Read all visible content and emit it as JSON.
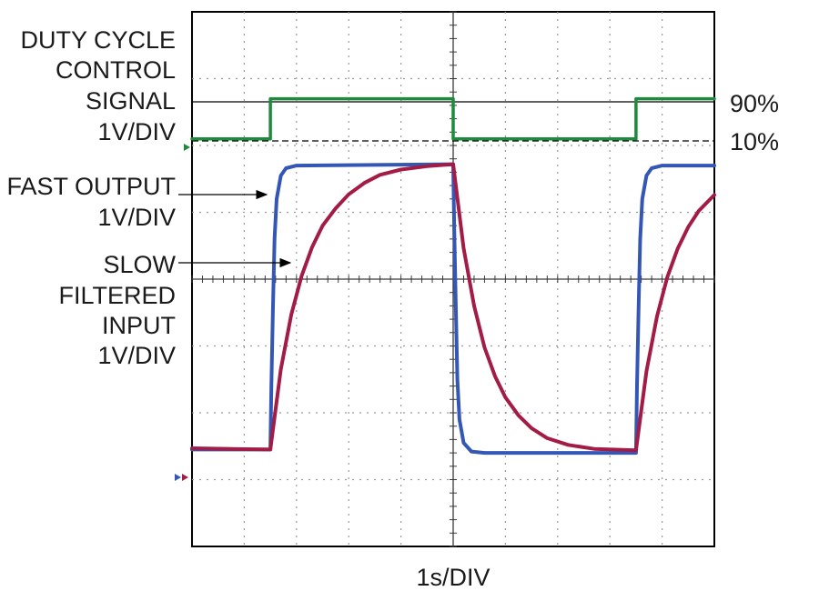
{
  "chart_data": {
    "type": "line",
    "title": "",
    "xlabel": "1s/DIV",
    "ylabel": "",
    "xlim": [
      0,
      10
    ],
    "ylim": [
      0,
      8
    ],
    "grid": true,
    "labels": {
      "duty": [
        "DUTY CYCLE",
        "CONTROL",
        "SIGNAL",
        "1V/DIV"
      ],
      "fast": [
        "FAST OUTPUT",
        "1V/DIV"
      ],
      "slow": [
        "SLOW",
        "FILTERED",
        "INPUT",
        "1V/DIV"
      ],
      "level_high": "90%",
      "level_low": "10%"
    },
    "series": [
      {
        "key": "duty",
        "color": "#1e8a3e",
        "marker_color": "#1e8a3e",
        "low": 6.1,
        "high": 6.7,
        "points": [
          [
            0,
            6.1
          ],
          [
            1.5,
            6.1
          ],
          [
            1.5,
            6.7
          ],
          [
            5.0,
            6.7
          ],
          [
            5.0,
            6.1
          ],
          [
            8.5,
            6.1
          ],
          [
            8.5,
            6.7
          ],
          [
            10,
            6.7
          ]
        ]
      },
      {
        "key": "fast",
        "color": "#3457b6",
        "marker_color": "#3457b6",
        "low": 1.4,
        "high": 5.7,
        "points": [
          [
            0,
            1.45
          ],
          [
            1.5,
            1.45
          ],
          [
            1.52,
            2.4
          ],
          [
            1.55,
            3.6
          ],
          [
            1.58,
            4.6
          ],
          [
            1.62,
            5.2
          ],
          [
            1.7,
            5.55
          ],
          [
            1.8,
            5.66
          ],
          [
            2.0,
            5.7
          ],
          [
            5.0,
            5.72
          ],
          [
            5.02,
            4.8
          ],
          [
            5.05,
            3.6
          ],
          [
            5.08,
            2.5
          ],
          [
            5.12,
            1.9
          ],
          [
            5.2,
            1.55
          ],
          [
            5.35,
            1.42
          ],
          [
            5.6,
            1.4
          ],
          [
            8.5,
            1.4
          ],
          [
            8.52,
            2.4
          ],
          [
            8.55,
            3.6
          ],
          [
            8.58,
            4.6
          ],
          [
            8.62,
            5.2
          ],
          [
            8.7,
            5.55
          ],
          [
            8.8,
            5.66
          ],
          [
            9.0,
            5.7
          ],
          [
            10,
            5.7
          ]
        ]
      },
      {
        "key": "slow",
        "color": "#a31c46",
        "marker_color": "#a31c46",
        "low": 1.4,
        "high": 5.72,
        "points": [
          [
            0,
            1.47
          ],
          [
            1.5,
            1.45
          ],
          [
            1.7,
            2.65
          ],
          [
            1.9,
            3.47
          ],
          [
            2.1,
            4.05
          ],
          [
            2.3,
            4.48
          ],
          [
            2.5,
            4.8
          ],
          [
            2.75,
            5.06
          ],
          [
            3.0,
            5.27
          ],
          [
            3.3,
            5.44
          ],
          [
            3.6,
            5.56
          ],
          [
            4.0,
            5.64
          ],
          [
            4.5,
            5.69
          ],
          [
            5.0,
            5.72
          ],
          [
            5.2,
            4.46
          ],
          [
            5.4,
            3.6
          ],
          [
            5.6,
            2.98
          ],
          [
            5.8,
            2.55
          ],
          [
            6.0,
            2.23
          ],
          [
            6.25,
            1.96
          ],
          [
            6.5,
            1.77
          ],
          [
            6.8,
            1.62
          ],
          [
            7.2,
            1.52
          ],
          [
            7.7,
            1.46
          ],
          [
            8.5,
            1.44
          ],
          [
            8.7,
            2.62
          ],
          [
            8.9,
            3.44
          ],
          [
            9.1,
            4.03
          ],
          [
            9.3,
            4.46
          ],
          [
            9.5,
            4.78
          ],
          [
            9.7,
            5.02
          ],
          [
            10,
            5.26
          ]
        ]
      }
    ]
  }
}
